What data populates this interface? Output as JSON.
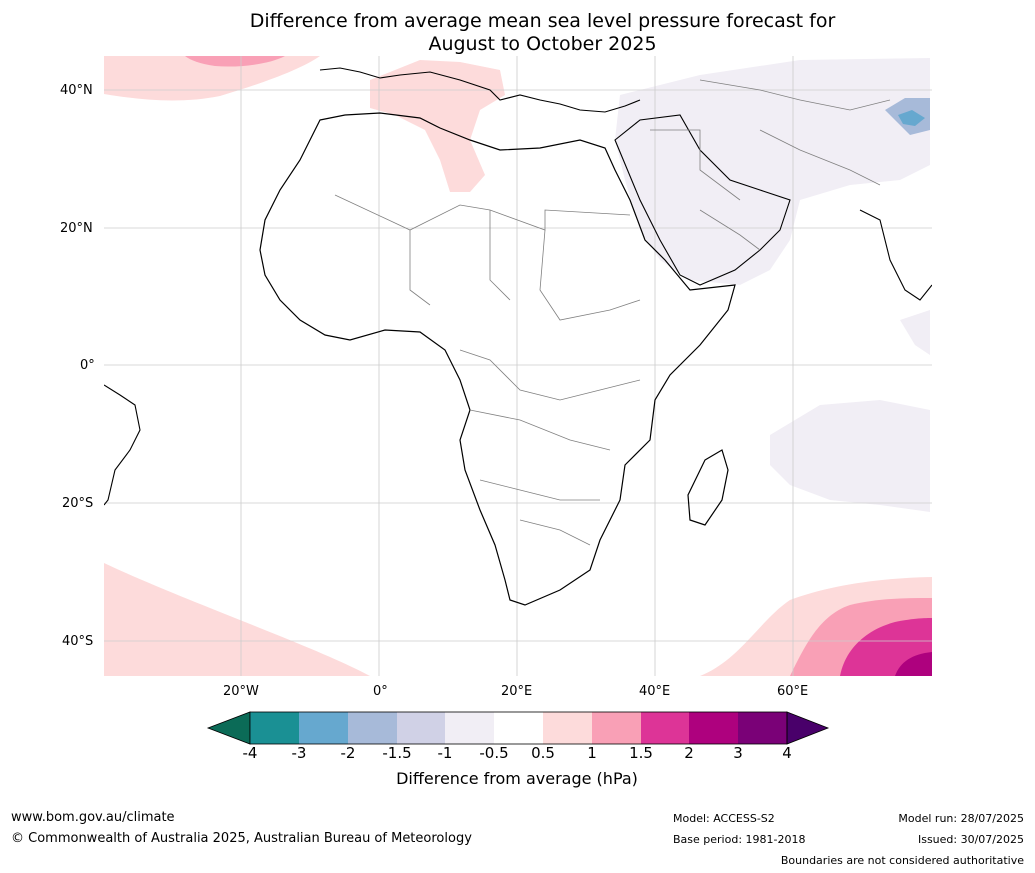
{
  "title_line1": "Difference from average mean sea level pressure forecast for",
  "title_line2": "August to October 2025",
  "lat_labels": [
    "40°N",
    "20°N",
    "0°",
    "20°S",
    "40°S"
  ],
  "lon_labels": [
    "20°W",
    "0°",
    "20°E",
    "40°E",
    "60°E"
  ],
  "colorbar": {
    "title": "Difference from average (hPa)",
    "tick_labels": [
      "-4",
      "-3",
      "-2",
      "-1.5",
      "-1",
      "-0.5",
      "0.5",
      "1",
      "1.5",
      "2",
      "3",
      "4"
    ],
    "colors": [
      "#0b6b57",
      "#1a9094",
      "#66a8cf",
      "#a7bad9",
      "#d0d1e6",
      "#f1eef5",
      "#ffffff",
      "#fddbdb",
      "#f9a0b6",
      "#dd3497",
      "#ae017e",
      "#7a0177",
      "#49006a"
    ]
  },
  "footer": {
    "site": "www.bom.gov.au/climate",
    "copyright": "© Commonwealth of Australia 2025, Australian Bureau of Meteorology",
    "model": "Model: ACCESS-S2",
    "base_period": "Base period: 1981-2018",
    "model_run": "Model run: 28/07/2025",
    "issued": "Issued: 30/07/2025",
    "disclaimer": "Boundaries are not considered authoritative"
  }
}
